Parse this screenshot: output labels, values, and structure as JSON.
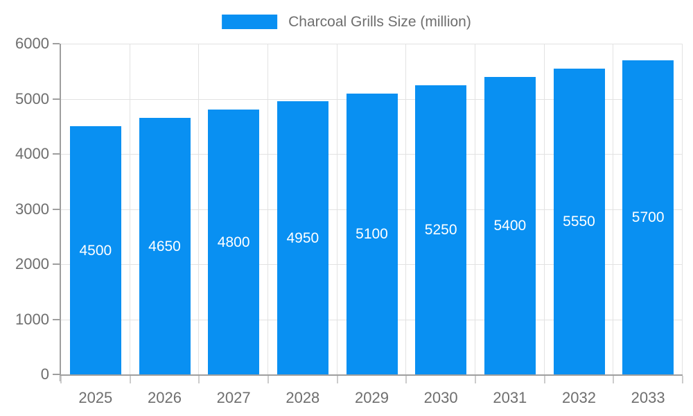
{
  "legend": {
    "label": "Charcoal Grills Size (million)"
  },
  "colors": {
    "bar": "#0990f2",
    "bar_label": "#ffffff",
    "grid": "#e2e2e2",
    "axis": "#9e9e9e",
    "x_tick": "#cccccc",
    "text": "#6e6e6e"
  },
  "chart_data": {
    "type": "bar",
    "title": "Charcoal Grills Size (million)",
    "categories": [
      "2025",
      "2026",
      "2027",
      "2028",
      "2029",
      "2030",
      "2031",
      "2032",
      "2033"
    ],
    "values": [
      4500,
      4650,
      4800,
      4950,
      5100,
      5250,
      5400,
      5550,
      5700
    ],
    "xlabel": "",
    "ylabel": "",
    "ylim": [
      0,
      6000
    ],
    "ytick_step": 1000,
    "ytick_labels": [
      "0",
      "1000",
      "2000",
      "3000",
      "4000",
      "5000",
      "6000"
    ],
    "grid": true,
    "legend_position": "top-center",
    "bar_value_label_position": "inside-center"
  }
}
